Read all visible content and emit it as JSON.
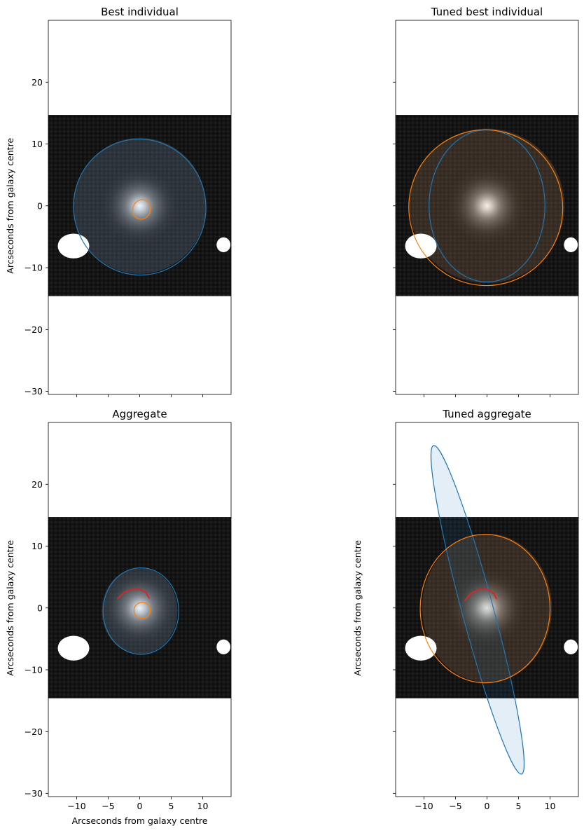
{
  "chart_data": [
    {
      "type": "scatter",
      "title": "Best individual",
      "xlabel": "",
      "ylabel": "Arcseconds from galaxy centre",
      "xlim": [
        -14.5,
        14.5
      ],
      "ylim": [
        -30.5,
        30
      ],
      "xticks": [
        -10,
        -5,
        0,
        5,
        10
      ],
      "yticks": [
        -30,
        -20,
        -10,
        0,
        10,
        20
      ],
      "show_xtick_labels": false,
      "show_ytick_labels": true,
      "image_extent": {
        "x": [
          -14.5,
          14.5
        ],
        "y": [
          -14.6,
          14.7
        ]
      },
      "masks": [
        {
          "cx": -10.5,
          "cy": -6.5,
          "w": 5,
          "h": 4
        },
        {
          "cx": 13.3,
          "cy": -6.3,
          "w": 2.2,
          "h": 2.4
        }
      ],
      "tint": {
        "color": "#9ec4e8",
        "cx": 0,
        "cy": 0,
        "rx": 10.5,
        "ry": 11
      },
      "ellipses": [
        {
          "name": "disk",
          "color": "#1f77b4",
          "cx": 0,
          "cy": -0.2,
          "rx": 10.5,
          "ry": 11,
          "angle_deg": -10,
          "fill": false
        },
        {
          "name": "bulge",
          "color": "#ff7f0e",
          "cx": 0.3,
          "cy": -0.6,
          "rx": 1.4,
          "ry": 1.6,
          "angle_deg": 20,
          "fill": false
        }
      ],
      "arcs": []
    },
    {
      "type": "scatter",
      "title": "Tuned best individual",
      "xlabel": "",
      "ylabel": "",
      "xlim": [
        -14.5,
        14.5
      ],
      "ylim": [
        -30.5,
        30
      ],
      "xticks": [
        -10,
        -5,
        0,
        5,
        10
      ],
      "yticks": [
        -30,
        -20,
        -10,
        0,
        10,
        20
      ],
      "show_xtick_labels": false,
      "show_ytick_labels": false,
      "image_extent": {
        "x": [
          -14.5,
          14.5
        ],
        "y": [
          -14.6,
          14.7
        ]
      },
      "masks": [
        {
          "cx": -10.5,
          "cy": -6.5,
          "w": 5,
          "h": 4
        },
        {
          "cx": 13.3,
          "cy": -6.3,
          "w": 2.2,
          "h": 2.4
        }
      ],
      "tint": {
        "color": "#d9a070",
        "cx": 0,
        "cy": 0,
        "rx": 12.3,
        "ry": 12.5
      },
      "ellipses": [
        {
          "name": "disk",
          "color": "#1f77b4",
          "cx": 0,
          "cy": 0,
          "rx": 9.2,
          "ry": 12.3,
          "angle_deg": 0,
          "fill": false
        },
        {
          "name": "bulge",
          "color": "#ff7f0e",
          "cx": -0.2,
          "cy": -0.3,
          "rx": 12.2,
          "ry": 12.6,
          "angle_deg": -15,
          "fill": false
        }
      ],
      "arcs": []
    },
    {
      "type": "scatter",
      "title": "Aggregate",
      "xlabel": "Arcseconds from galaxy centre",
      "ylabel": "Arcseconds from galaxy centre",
      "xlim": [
        -14.5,
        14.5
      ],
      "ylim": [
        -30.5,
        30
      ],
      "xticks": [
        -10,
        -5,
        0,
        5,
        10
      ],
      "yticks": [
        -30,
        -20,
        -10,
        0,
        10,
        20
      ],
      "show_xtick_labels": true,
      "show_ytick_labels": true,
      "image_extent": {
        "x": [
          -14.5,
          14.5
        ],
        "y": [
          -14.6,
          14.7
        ]
      },
      "masks": [
        {
          "cx": -10.5,
          "cy": -6.5,
          "w": 5,
          "h": 4
        },
        {
          "cx": 13.3,
          "cy": -6.3,
          "w": 2.2,
          "h": 2.4
        }
      ],
      "tint": {
        "color": "#9ec4e8",
        "cx": 0,
        "cy": -0.5,
        "rx": 6,
        "ry": 7
      },
      "ellipses": [
        {
          "name": "disk",
          "color": "#1f77b4",
          "cx": 0.2,
          "cy": -0.5,
          "rx": 6,
          "ry": 7,
          "angle_deg": 0,
          "fill": false
        },
        {
          "name": "bulge",
          "color": "#ff7f0e",
          "cx": 0.4,
          "cy": -0.4,
          "rx": 1.3,
          "ry": 1.3,
          "angle_deg": 0,
          "fill": false
        }
      ],
      "arcs": [
        {
          "name": "spiral-arm",
          "color": "#d62728",
          "points": [
            [
              -3.5,
              1.5
            ],
            [
              -2.5,
              2.5
            ],
            [
              -1.2,
              3
            ],
            [
              0,
              3
            ],
            [
              1,
              2.5
            ],
            [
              1.5,
              1.6
            ]
          ]
        }
      ]
    },
    {
      "type": "scatter",
      "title": "Tuned aggregate",
      "xlabel": "",
      "ylabel": "Arcseconds from galaxy centre",
      "xlim": [
        -14.5,
        14.5
      ],
      "ylim": [
        -30.5,
        30
      ],
      "xticks": [
        -10,
        -5,
        0,
        5,
        10
      ],
      "yticks": [
        -30,
        -20,
        -10,
        0,
        10,
        20
      ],
      "show_xtick_labels": true,
      "show_ytick_labels": false,
      "image_extent": {
        "x": [
          -14.5,
          14.5
        ],
        "y": [
          -14.6,
          14.7
        ]
      },
      "masks": [
        {
          "cx": -10.5,
          "cy": -6.5,
          "w": 5,
          "h": 4
        },
        {
          "cx": 13.3,
          "cy": -6.3,
          "w": 2.2,
          "h": 2.4
        }
      ],
      "tint": {
        "color": "#d9a070",
        "cx": 0,
        "cy": 0,
        "rx": 10.3,
        "ry": 12
      },
      "ellipses": [
        {
          "name": "disk",
          "color": "#1f77b4",
          "cx": -1.5,
          "cy": -0.3,
          "rx": 2.5,
          "ry": 27.5,
          "angle_deg": -15,
          "fill": true
        },
        {
          "name": "bulge",
          "color": "#ff7f0e",
          "cx": -0.3,
          "cy": -0.1,
          "rx": 10.3,
          "ry": 12,
          "angle_deg": 0,
          "fill": false
        }
      ],
      "arcs": [
        {
          "name": "spiral-arm",
          "color": "#d62728",
          "points": [
            [
              -3.5,
              1.2
            ],
            [
              -2.6,
              2.3
            ],
            [
              -1.3,
              3
            ],
            [
              0,
              3
            ],
            [
              1.1,
              2.3
            ],
            [
              1.5,
              1.5
            ]
          ]
        }
      ]
    }
  ]
}
